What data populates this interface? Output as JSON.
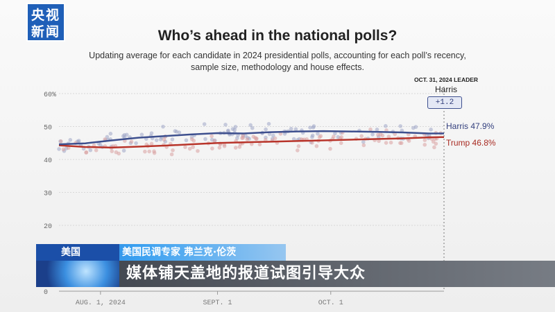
{
  "broadcaster": {
    "logo_line1": "央视",
    "logo_line2": "新闻"
  },
  "title": "Who’s ahead in the national polls?",
  "subtitle": "Updating average for each candidate in 2024 presidential polls, accounting for each poll’s recency, sample size, methodology and house effects.",
  "leader": {
    "header": "OCT. 31, 2024 LEADER",
    "name": "Harris",
    "margin": "+1.2"
  },
  "end_labels": {
    "harris": "Harris 47.9%",
    "trump": "Trump 46.8%"
  },
  "chyron": {
    "tag": "美国",
    "name": "美国民调专家 弗兰克·伦茨",
    "caption": "媒体铺天盖地的报道试图引导大众"
  },
  "colors": {
    "harris": "#3d4f8e",
    "trump": "#b8342a",
    "harris_dots": "#9fa6c6",
    "trump_dots": "#d9a0a0"
  },
  "chart_data": {
    "type": "line",
    "x_dates": [
      "2024-07-21",
      "2024-07-28",
      "2024-08-04",
      "2024-08-11",
      "2024-08-18",
      "2024-08-25",
      "2024-09-01",
      "2024-09-08",
      "2024-09-15",
      "2024-09-22",
      "2024-09-29",
      "2024-10-06",
      "2024-10-13",
      "2024-10-20",
      "2024-10-27",
      "2024-10-31"
    ],
    "x_tick_labels": [
      "AUG. 1, 2024",
      "SEPT. 1",
      "OCT. 1"
    ],
    "x_tick_dates": [
      "2024-08-01",
      "2024-09-01",
      "2024-10-01"
    ],
    "y_ticks": [
      0,
      20,
      30,
      40,
      50,
      60
    ],
    "y_tick_labels": [
      "0",
      "20",
      "30",
      "40",
      "50",
      "60%"
    ],
    "ylim": [
      0,
      60
    ],
    "series": [
      {
        "name": "Harris",
        "values": [
          44.6,
          44.9,
          45.8,
          46.6,
          47.1,
          47.6,
          48.0,
          47.9,
          48.3,
          48.5,
          48.6,
          48.5,
          48.4,
          48.2,
          47.9,
          47.9
        ]
      },
      {
        "name": "Trump",
        "values": [
          44.3,
          43.8,
          43.6,
          43.9,
          44.2,
          44.6,
          45.0,
          45.2,
          45.4,
          45.6,
          45.8,
          46.0,
          46.2,
          46.4,
          46.7,
          46.8
        ]
      }
    ],
    "grid": true
  }
}
